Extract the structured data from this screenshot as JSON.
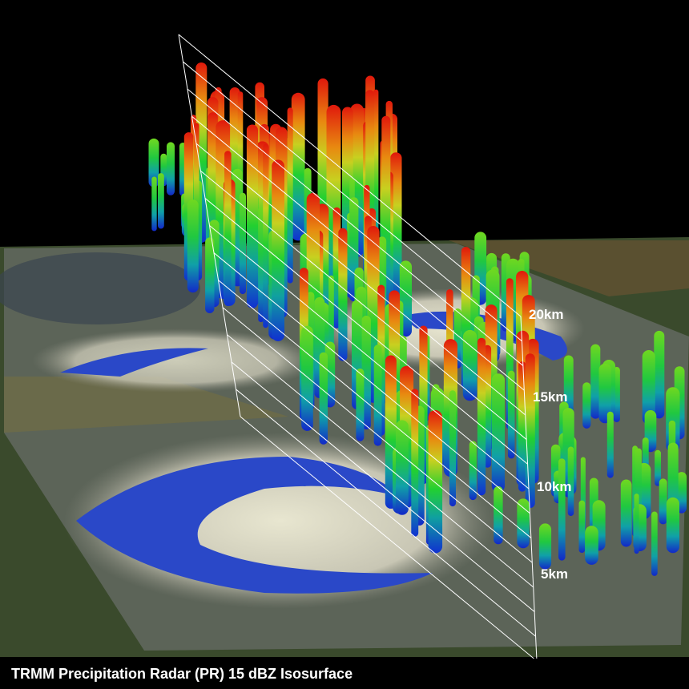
{
  "height_labels": [
    "20km",
    "15km",
    "10km",
    "5km"
  ],
  "caption": "TRMM Precipitation Radar (PR) 15 dBZ Isosurface"
}
